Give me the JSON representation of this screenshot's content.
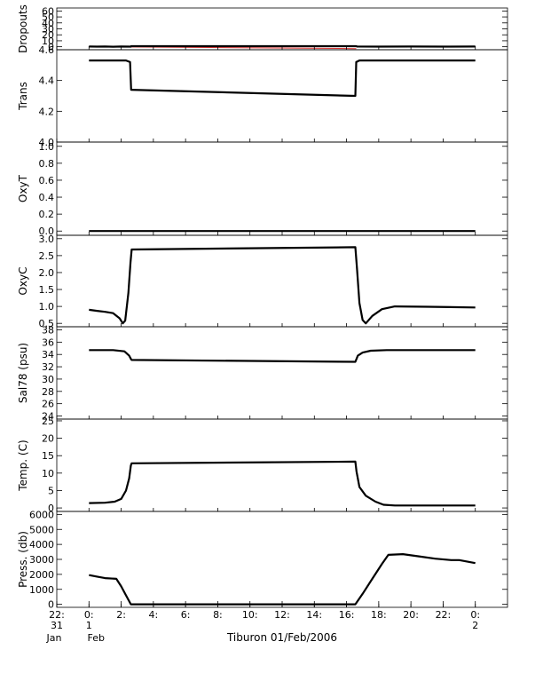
{
  "chart_data": {
    "type": "line",
    "title": "Tiburon 01/Feb/2006",
    "x_axis": {
      "unit": "hour",
      "range": [
        22,
        50
      ],
      "ticks": [
        {
          "value": 22,
          "label": "22:"
        },
        {
          "value": 24,
          "label": "0:"
        },
        {
          "value": 26,
          "label": "2:"
        },
        {
          "value": 28,
          "label": "4:"
        },
        {
          "value": 30,
          "label": "6:"
        },
        {
          "value": 32,
          "label": "8:"
        },
        {
          "value": 34,
          "label": "10:"
        },
        {
          "value": 36,
          "label": "12:"
        },
        {
          "value": 38,
          "label": "14:"
        },
        {
          "value": 40,
          "label": "16:"
        },
        {
          "value": 42,
          "label": "18:"
        },
        {
          "value": 44,
          "label": "20:"
        },
        {
          "value": 46,
          "label": "22:"
        },
        {
          "value": 48,
          "label": "0:"
        }
      ],
      "date_labels": [
        {
          "value": 22,
          "day": "31",
          "month": "Jan"
        },
        {
          "value": 24,
          "day": "1",
          "month": "Feb"
        },
        {
          "value": 48,
          "day": "2",
          "month": ""
        }
      ]
    },
    "panels": [
      {
        "name": "Dropouts",
        "ylabel": "Dropouts",
        "ylim": [
          -5,
          65
        ],
        "yticks": [
          0,
          10,
          20,
          30,
          40,
          50,
          60
        ],
        "series": [
          {
            "style": "gap",
            "points": [
              [
                24.0,
                0.2
              ],
              [
                40.6,
                -3.0
              ]
            ]
          },
          {
            "style": "data",
            "points": [
              [
                24.0,
                0.3
              ],
              [
                24.5,
                0.2
              ],
              [
                25.0,
                0.4
              ],
              [
                25.5,
                0.1
              ],
              [
                26.0,
                0.3
              ],
              [
                26.6,
                0.2
              ],
              [
                26.62,
                1.0
              ],
              [
                40.6,
                1.0
              ],
              [
                40.65,
                0.3
              ],
              [
                42.0,
                0.2
              ],
              [
                44.0,
                0.3
              ],
              [
                46.0,
                0.2
              ],
              [
                48.0,
                0.3
              ]
            ]
          }
        ]
      },
      {
        "name": "Trans",
        "ylabel": "Trans",
        "ylim": [
          4.0,
          4.6
        ],
        "yticks": [
          4.0,
          4.2,
          4.4,
          4.6
        ],
        "series": [
          {
            "style": "gap",
            "points": [
              [
                26.65,
                4.34
              ],
              [
                40.55,
                4.3
              ]
            ]
          },
          {
            "style": "data",
            "points": [
              [
                24.0,
                4.53
              ],
              [
                26.3,
                4.53
              ],
              [
                26.55,
                4.52
              ],
              [
                26.62,
                4.34
              ],
              [
                40.55,
                4.3
              ],
              [
                40.6,
                4.52
              ],
              [
                40.8,
                4.53
              ],
              [
                48.0,
                4.53
              ]
            ]
          }
        ]
      },
      {
        "name": "OxyT",
        "ylabel": "OxyT",
        "ylim": [
          -0.05,
          1.05
        ],
        "yticks": [
          0.0,
          0.2,
          0.4,
          0.6,
          0.8,
          1.0
        ],
        "series": [
          {
            "style": "gap",
            "points": [
              [
                26.65,
                0.0
              ],
              [
                40.55,
                0.0
              ]
            ]
          },
          {
            "style": "data",
            "points": [
              [
                24.0,
                0.0
              ],
              [
                26.62,
                0.0
              ],
              [
                40.6,
                0.0
              ],
              [
                48.0,
                0.0
              ]
            ]
          }
        ]
      },
      {
        "name": "OxyC",
        "ylabel": "OxyC",
        "ylim": [
          0.4,
          3.1
        ],
        "yticks": [
          0.5,
          1.0,
          1.5,
          2.0,
          2.5,
          3.0
        ],
        "series": [
          {
            "style": "gap",
            "points": [
              [
                26.65,
                2.68
              ],
              [
                40.55,
                2.75
              ]
            ]
          },
          {
            "style": "data",
            "points": [
              [
                24.0,
                0.9
              ],
              [
                24.5,
                0.87
              ],
              [
                25.0,
                0.84
              ],
              [
                25.5,
                0.8
              ],
              [
                25.9,
                0.65
              ],
              [
                26.1,
                0.5
              ],
              [
                26.25,
                0.58
              ],
              [
                26.45,
                1.4
              ],
              [
                26.58,
                2.3
              ],
              [
                26.65,
                2.68
              ],
              [
                40.55,
                2.75
              ],
              [
                40.65,
                2.1
              ],
              [
                40.8,
                1.1
              ],
              [
                41.0,
                0.6
              ],
              [
                41.2,
                0.5
              ],
              [
                41.6,
                0.72
              ],
              [
                42.2,
                0.92
              ],
              [
                43.0,
                1.0
              ],
              [
                45.0,
                0.99
              ],
              [
                48.0,
                0.97
              ]
            ]
          }
        ]
      },
      {
        "name": "Sal78",
        "ylabel": "Sal78 (psu)",
        "ylim": [
          23.5,
          38.5
        ],
        "yticks": [
          24,
          26,
          28,
          30,
          32,
          34,
          36,
          38
        ],
        "series": [
          {
            "style": "gap",
            "points": [
              [
                26.65,
                33.1
              ],
              [
                40.55,
                32.8
              ]
            ]
          },
          {
            "style": "data",
            "points": [
              [
                24.0,
                34.7
              ],
              [
                25.5,
                34.7
              ],
              [
                26.2,
                34.5
              ],
              [
                26.5,
                33.8
              ],
              [
                26.62,
                33.2
              ],
              [
                26.65,
                33.1
              ],
              [
                40.55,
                32.8
              ],
              [
                40.7,
                33.8
              ],
              [
                41.0,
                34.3
              ],
              [
                41.5,
                34.6
              ],
              [
                42.5,
                34.7
              ],
              [
                48.0,
                34.7
              ]
            ]
          }
        ]
      },
      {
        "name": "Temp",
        "ylabel": "Temp. (C)",
        "ylim": [
          -1,
          25.5
        ],
        "yticks": [
          0,
          5,
          10,
          15,
          20,
          25
        ],
        "series": [
          {
            "style": "gap",
            "points": [
              [
                26.65,
                12.8
              ],
              [
                40.55,
                13.3
              ]
            ]
          },
          {
            "style": "data",
            "points": [
              [
                24.0,
                1.4
              ],
              [
                25.0,
                1.5
              ],
              [
                25.6,
                1.8
              ],
              [
                26.0,
                2.6
              ],
              [
                26.3,
                5.0
              ],
              [
                26.5,
                8.5
              ],
              [
                26.6,
                12.2
              ],
              [
                26.65,
                12.8
              ],
              [
                40.55,
                13.3
              ],
              [
                40.62,
                10.5
              ],
              [
                40.8,
                6.0
              ],
              [
                41.2,
                3.5
              ],
              [
                41.8,
                1.8
              ],
              [
                42.3,
                0.9
              ],
              [
                43.0,
                0.7
              ],
              [
                48.0,
                0.7
              ]
            ]
          }
        ]
      },
      {
        "name": "Press",
        "ylabel": "Press. (db)",
        "ylim": [
          -200,
          6200
        ],
        "yticks": [
          0,
          1000,
          2000,
          3000,
          4000,
          5000,
          6000
        ],
        "series": [
          {
            "style": "gap",
            "points": [
              [
                26.65,
                0
              ],
              [
                40.55,
                0
              ]
            ]
          },
          {
            "style": "data",
            "points": [
              [
                24.0,
                1950
              ],
              [
                24.5,
                1850
              ],
              [
                25.0,
                1750
              ],
              [
                25.7,
                1700
              ],
              [
                26.0,
                1200
              ],
              [
                26.3,
                600
              ],
              [
                26.6,
                0
              ],
              [
                40.55,
                0
              ],
              [
                41.0,
                700
              ],
              [
                41.6,
                1700
              ],
              [
                42.2,
                2700
              ],
              [
                42.6,
                3300
              ],
              [
                43.5,
                3350
              ],
              [
                44.5,
                3200
              ],
              [
                45.5,
                3050
              ],
              [
                46.5,
                2950
              ],
              [
                47.0,
                2950
              ],
              [
                48.0,
                2750
              ]
            ]
          }
        ]
      }
    ]
  }
}
